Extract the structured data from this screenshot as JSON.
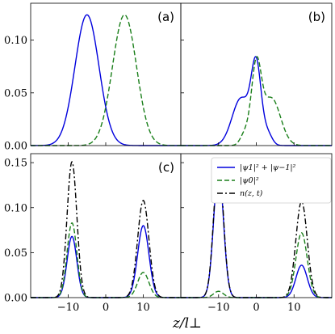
{
  "figure": {
    "xlabel": "z/l⊥"
  },
  "legend": {
    "entries": [
      {
        "label": "|ψ1|² + |ψ−1|²",
        "color": "#0000dd",
        "style": "solid"
      },
      {
        "label": "|ψ0|²",
        "color": "#1a7f1a",
        "style": "dashed"
      },
      {
        "label": "n(z, t)",
        "color": "#000000",
        "style": "dashdot"
      }
    ],
    "placement": "top-right of panel (d)"
  },
  "chart_data": [
    {
      "type": "line",
      "panel": "(a)",
      "xlim": [
        -20,
        20
      ],
      "ylim": [
        0,
        0.135
      ],
      "yticks": [
        "0.00",
        "0.05",
        "0.10"
      ],
      "ytick_values": [
        0,
        0.05,
        0.1
      ],
      "xticks": [],
      "xtick_values": [
        -10,
        0,
        10
      ],
      "series": [
        {
          "key": "spin",
          "peaks": [
            {
              "mu": -5,
              "sigma": 3.2,
              "amp": 0.124
            }
          ]
        },
        {
          "key": "psi0",
          "peaks": [
            {
              "mu": 5,
              "sigma": 3.2,
              "amp": 0.124
            }
          ]
        }
      ]
    },
    {
      "type": "line",
      "panel": "(b)",
      "xlim": [
        -20,
        20
      ],
      "ylim": [
        0,
        0.135
      ],
      "yticks": [],
      "ytick_values": [
        0,
        0.05,
        0.1
      ],
      "xticks": [],
      "xtick_values": [
        -10,
        0,
        10
      ],
      "series": [
        {
          "key": "spin",
          "peaks": [
            {
              "mu": -4,
              "sigma": 2.4,
              "amp": 0.045
            },
            {
              "mu": 0,
              "sigma": 1.3,
              "amp": 0.072
            },
            {
              "mu": 3,
              "sigma": 1.2,
              "amp": 0.011
            }
          ]
        },
        {
          "key": "psi0",
          "peaks": [
            {
              "mu": 4,
              "sigma": 2.4,
              "amp": 0.045
            },
            {
              "mu": 0,
              "sigma": 1.3,
              "amp": 0.072
            },
            {
              "mu": -3,
              "sigma": 1.2,
              "amp": 0.011
            }
          ]
        }
      ]
    },
    {
      "type": "line",
      "panel": "(c)",
      "xlim": [
        -20,
        20
      ],
      "ylim": [
        0,
        0.16
      ],
      "yticks": [
        "0.00",
        "0.05",
        "0.10",
        "0.15"
      ],
      "ytick_values": [
        0,
        0.05,
        0.1,
        0.15
      ],
      "xticks": [
        "−10",
        "0",
        "10"
      ],
      "xtick_values": [
        -10,
        0,
        10
      ],
      "series": [
        {
          "key": "spin",
          "peaks": [
            {
              "mu": -9,
              "sigma": 1.3,
              "amp": 0.068
            },
            {
              "mu": 10,
              "sigma": 1.5,
              "amp": 0.08
            }
          ]
        },
        {
          "key": "psi0",
          "peaks": [
            {
              "mu": -9,
              "sigma": 1.3,
              "amp": 0.083
            },
            {
              "mu": 10,
              "sigma": 1.5,
              "amp": 0.028
            }
          ]
        },
        {
          "key": "total",
          "peaks": [
            {
              "mu": -9,
              "sigma": 1.3,
              "amp": 0.151
            },
            {
              "mu": 10,
              "sigma": 1.5,
              "amp": 0.108
            }
          ]
        }
      ]
    },
    {
      "type": "line",
      "panel": "(d)",
      "xlim": [
        -20,
        20
      ],
      "ylim": [
        0,
        0.16
      ],
      "yticks": [],
      "ytick_values": [
        0,
        0.05,
        0.1,
        0.15
      ],
      "xticks": [
        "−10",
        "0",
        "10"
      ],
      "xtick_values": [
        -10,
        0,
        10
      ],
      "series": [
        {
          "key": "spin",
          "peaks": [
            {
              "mu": -10,
              "sigma": 1.3,
              "amp": 0.143
            },
            {
              "mu": 12,
              "sigma": 1.5,
              "amp": 0.036
            }
          ]
        },
        {
          "key": "psi0",
          "peaks": [
            {
              "mu": -10,
              "sigma": 1.3,
              "amp": 0.007
            },
            {
              "mu": 12,
              "sigma": 1.5,
              "amp": 0.072
            }
          ]
        },
        {
          "key": "total",
          "peaks": [
            {
              "mu": -10,
              "sigma": 1.3,
              "amp": 0.15
            },
            {
              "mu": 12,
              "sigma": 1.5,
              "amp": 0.107
            }
          ]
        }
      ]
    }
  ],
  "styles": {
    "spin": {
      "color": "#0000dd",
      "dash": "none"
    },
    "psi0": {
      "color": "#1a7f1a",
      "dash": "6,3"
    },
    "total": {
      "color": "#000000",
      "dash": "7,3,2,3"
    }
  }
}
